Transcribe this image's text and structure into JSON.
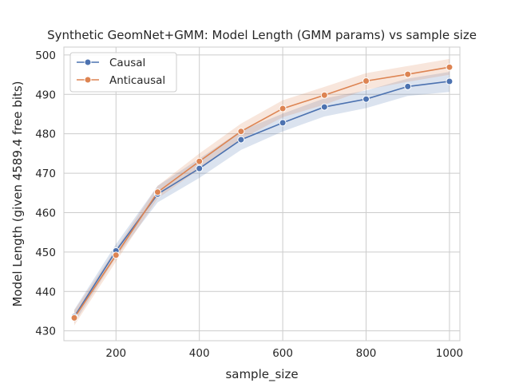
{
  "chart_data": {
    "type": "line",
    "title": "Synthetic GeomNet+GMM: Model Length (GMM params) vs sample size",
    "xlabel": "sample_size",
    "ylabel": "Model Length (given 4589.4 free bits)",
    "xlim": [
      75,
      1025
    ],
    "ylim": [
      427.5,
      502
    ],
    "xticks": [
      200,
      400,
      600,
      800,
      1000
    ],
    "yticks": [
      430,
      440,
      450,
      460,
      470,
      480,
      490,
      500
    ],
    "grid": true,
    "legend_position": "top-left",
    "x": [
      100,
      200,
      300,
      400,
      500,
      600,
      700,
      800,
      900,
      1000
    ],
    "series": [
      {
        "name": "Causal",
        "color": "#4c72b0",
        "values": [
          433.6,
          450.3,
          464.7,
          471.2,
          478.5,
          482.8,
          486.8,
          488.8,
          492.0,
          493.3
        ],
        "ci_lower": [
          432.0,
          448.7,
          462.6,
          468.8,
          475.9,
          480.6,
          484.4,
          486.5,
          489.6,
          490.6
        ],
        "ci_upper": [
          435.4,
          452.0,
          466.8,
          473.7,
          480.8,
          485.1,
          489.0,
          491.0,
          494.0,
          495.7
        ]
      },
      {
        "name": "Anticausal",
        "color": "#dd8452",
        "values": [
          433.3,
          449.2,
          465.2,
          473.0,
          480.6,
          486.4,
          489.8,
          493.4,
          495.1,
          496.9
        ],
        "ci_lower": [
          431.4,
          447.6,
          463.6,
          471.0,
          478.6,
          484.2,
          487.4,
          491.2,
          493.2,
          495.0
        ],
        "ci_upper": [
          435.2,
          450.8,
          466.8,
          475.0,
          482.6,
          488.5,
          491.9,
          495.4,
          497.2,
          499.0
        ]
      }
    ]
  }
}
